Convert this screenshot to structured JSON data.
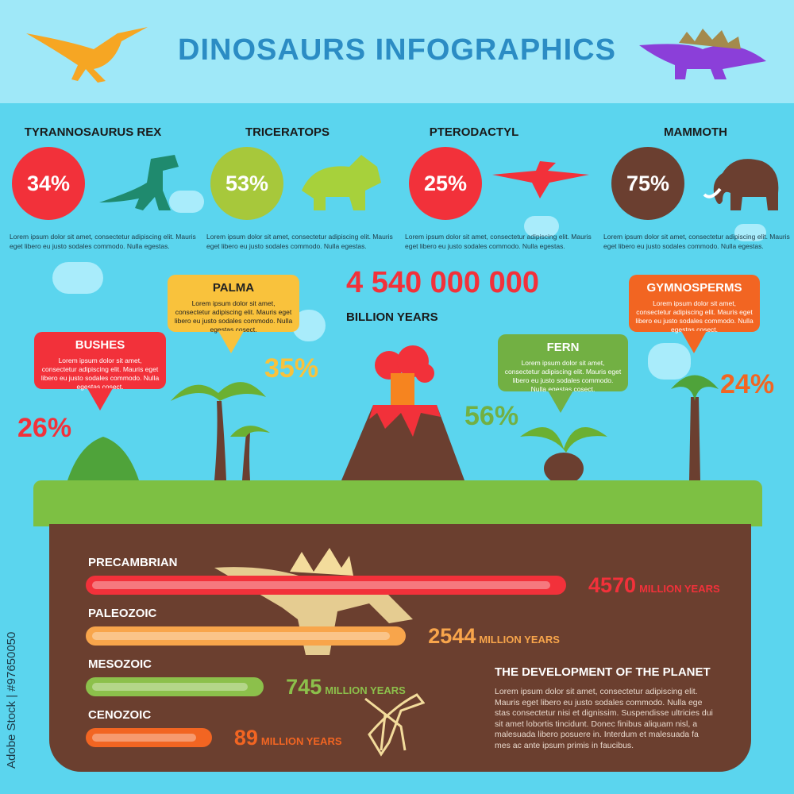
{
  "title": "DINOSAURS INFOGRAPHICS",
  "species": [
    {
      "name": "TYRANNOSAURUS REX",
      "percent": "34%",
      "color": "#f2313a",
      "desc": "Lorem ipsum dolor sit amet, consectetur adipiscing elit. Mauris eget libero eu justo sodales commodo. Nulla egestas.",
      "icon": "t-rex-icon"
    },
    {
      "name": "TRICERATOPS",
      "percent": "53%",
      "color": "#a7c83b",
      "desc": "Lorem ipsum dolor sit amet, consectetur adipiscing elit. Mauris eget libero eu justo sodales commodo. Nulla egestas.",
      "icon": "triceratops-icon"
    },
    {
      "name": "PTERODACTYL",
      "percent": "25%",
      "color": "#f2313a",
      "desc": "Lorem ipsum dolor sit amet, consectetur adipiscing elit. Mauris eget libero eu justo sodales commodo. Nulla egestas.",
      "icon": "pterodactyl-icon"
    },
    {
      "name": "MAMMOTH",
      "percent": "75%",
      "color": "#6b3f30",
      "desc": "Lorem ipsum dolor sit amet, consectetur adipiscing elit. Mauris eget libero eu justo sodales commodo. Nulla egestas.",
      "icon": "mammoth-icon"
    }
  ],
  "age": {
    "number": "4 540 000 000",
    "label": "BILLION YEARS"
  },
  "plants": {
    "bushes": {
      "title": "BUSHES",
      "text": "Lorem ipsum dolor sit amet, consectetur adipiscing elit. Mauris eget libero eu justo sodales commodo. Nulla egestas cosect.",
      "percent": "26%",
      "color": "#f2313a"
    },
    "palma": {
      "title": "PALMA",
      "text": "Lorem ipsum dolor sit amet, consectetur adipiscing elit. Mauris eget libero eu justo sodales commodo. Nulla egestas cosect.",
      "percent": "35%",
      "color": "#f9c23c"
    },
    "fern": {
      "title": "FERN",
      "text": "Lorem ipsum dolor sit amet, consectetur adipiscing elit. Mauris eget libero eu justo sodales commodo. Nulla egestas cosect.",
      "percent": "56%",
      "color": "#72b043"
    },
    "gymnosperms": {
      "title": "GYMNOSPERMS",
      "text": "Lorem ipsum dolor sit amet, consectetur adipiscing elit. Mauris eget libero eu justo sodales commodo. Nulla egestas cosect.",
      "percent": "24%",
      "color": "#f26522"
    }
  },
  "eras": [
    {
      "name": "PRECAMBRIAN",
      "value": "4570",
      "unit": "MILLION YEARS",
      "million_years": 4570,
      "color": "#f2313a"
    },
    {
      "name": "PALEOZOIC",
      "value": "2544",
      "unit": "MILLION YEARS",
      "million_years": 2544,
      "color": "#f8a54b"
    },
    {
      "name": "MESOZOIC",
      "value": "745",
      "unit": "MILLION YEARS",
      "million_years": 745,
      "color": "#8cc04b"
    },
    {
      "name": "CENOZOIC",
      "value": "89",
      "unit": "MILLION YEARS",
      "million_years": 89,
      "color": "#f26522"
    }
  ],
  "development": {
    "title": "THE DEVELOPMENT OF THE PLANET",
    "text": "Lorem ipsum dolor sit amet, consectetur adipiscing elit. Mauris eget libero eu justo sodales commodo. Nulla ege stas consectetur nisi et dignissim. Suspendisse ultricies dui sit amet lobortis tincidunt. Donec finibus aliquam nisl, a malesuada libero posuere in. Interdum et malesuada fa mes ac ante ipsum primis in faucibus."
  },
  "watermark": "Adobe Stock | #97650050"
}
